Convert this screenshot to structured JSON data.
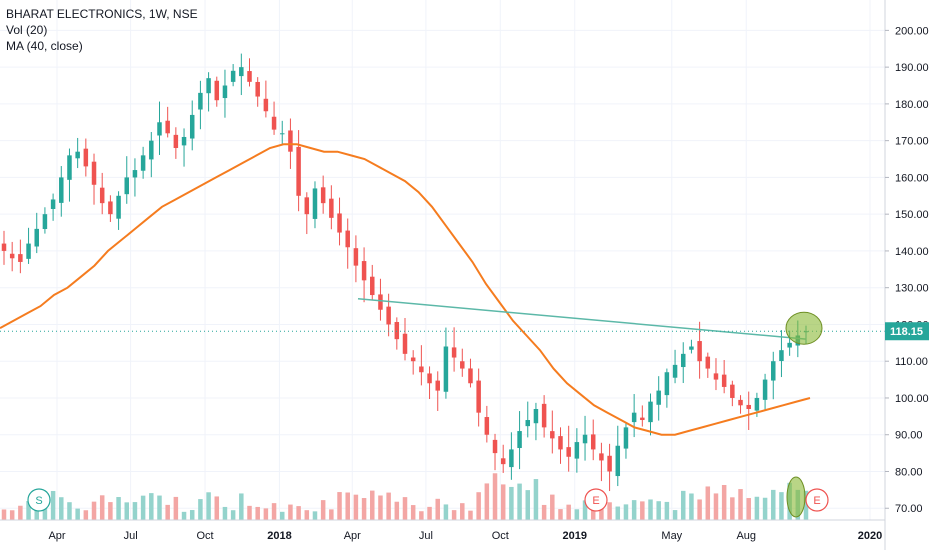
{
  "legend": {
    "title": "BHARAT ELECTRONICS, 1W, NSE",
    "volume": "Vol (20)",
    "ma": "MA (40, close)"
  },
  "colors": {
    "up": "#26a69a",
    "down": "#ef5350",
    "volume_up": "#94d3cc",
    "volume_down": "#f3a6a4",
    "ma": "#f57c1f",
    "trendline": "#5cb8a8",
    "price_line": "#26a69a",
    "highlight": "#8bb935",
    "event_circle": "#ef5350",
    "split_circle": "#26a69a"
  },
  "chart_data": {
    "type": "candlestick",
    "y_axis": {
      "min": 60,
      "max": 205,
      "ticks": [
        "200.00",
        "190.00",
        "180.00",
        "170.00",
        "160.00",
        "150.00",
        "140.00",
        "130.00",
        "120.00",
        "110.00",
        "100.00",
        "90.00",
        "80.00",
        "70.00"
      ],
      "tick_values": [
        200,
        190,
        180,
        170,
        160,
        150,
        140,
        130,
        120,
        110,
        100,
        90,
        80,
        70
      ]
    },
    "x_axis": {
      "labels": [
        {
          "text": "Apr",
          "date": "2017-04-01",
          "bold": false
        },
        {
          "text": "Jul",
          "date": "2017-07-01",
          "bold": false
        },
        {
          "text": "Oct",
          "date": "2017-10-01",
          "bold": false
        },
        {
          "text": "2018",
          "date": "2018-01-01",
          "bold": true
        },
        {
          "text": "Apr",
          "date": "2018-04-01",
          "bold": false
        },
        {
          "text": "Jul",
          "date": "2018-07-01",
          "bold": false
        },
        {
          "text": "Oct",
          "date": "2018-10-01",
          "bold": false
        },
        {
          "text": "2019",
          "date": "2019-01-01",
          "bold": true
        },
        {
          "text": "May",
          "date": "2019-05-01",
          "bold": false
        },
        {
          "text": "Aug",
          "date": "2019-08-01",
          "bold": false
        },
        {
          "text": "2020",
          "date": "2020-01-01",
          "bold": true
        }
      ]
    },
    "last_price": {
      "value": 118.15,
      "label": "118.15"
    },
    "close_series": [
      140,
      138,
      137,
      142,
      146,
      150,
      154,
      160,
      166,
      167,
      163,
      158,
      153,
      150,
      155,
      160,
      162,
      166,
      170,
      175,
      172,
      168,
      171,
      177,
      183,
      187,
      181,
      185,
      189,
      190,
      186,
      182,
      178,
      173,
      172,
      167,
      155,
      150,
      157,
      153,
      149,
      145,
      141,
      136,
      132,
      128,
      124,
      120,
      116,
      112,
      110,
      107,
      104,
      102,
      114,
      111,
      108,
      104,
      96,
      90,
      85,
      82,
      86,
      91,
      94,
      97,
      92,
      89,
      86,
      84,
      88,
      90,
      86,
      83,
      80,
      87,
      92,
      96,
      94,
      99,
      102,
      107,
      109,
      112,
      114,
      110,
      108,
      105,
      103,
      100,
      98,
      97,
      100,
      105,
      110,
      113,
      115,
      117,
      118.15
    ],
    "ma_40": [
      119,
      121,
      123,
      125,
      128,
      130,
      133,
      136,
      140,
      143,
      146,
      149,
      152,
      154,
      156,
      158,
      160,
      162,
      164,
      166,
      168,
      169,
      169,
      168,
      167,
      167,
      166,
      165,
      163,
      161,
      159,
      156,
      152,
      147,
      142,
      137,
      131,
      126,
      121,
      117,
      113,
      108,
      104,
      101,
      98,
      96,
      94,
      92,
      91,
      90,
      90,
      91,
      92,
      93,
      94,
      95,
      96,
      97,
      98,
      99,
      100
    ],
    "trendline": {
      "from": {
        "index": 0,
        "value": 127
      },
      "to": {
        "index": 1,
        "value": 116
      }
    },
    "markers": [
      {
        "type": "split",
        "label": "S"
      },
      {
        "type": "earnings",
        "label": "E"
      },
      {
        "type": "earnings",
        "label": "E"
      }
    ],
    "annotations": [
      "highlight-ellipse-price",
      "highlight-ellipse-volume"
    ]
  }
}
